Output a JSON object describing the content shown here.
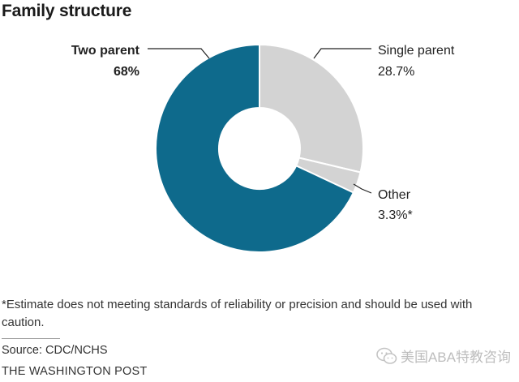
{
  "chart_data": {
    "type": "pie",
    "title": "Family structure",
    "slices": [
      {
        "label": "Single parent",
        "value": 28.7,
        "display": "28.7%",
        "color": "#d3d3d3"
      },
      {
        "label": "Other",
        "value": 3.3,
        "display": "3.3%*",
        "color": "#d3d3d3"
      },
      {
        "label": "Two parent",
        "value": 68,
        "display": "68%",
        "color": "#0e6a8c"
      }
    ],
    "separator_color": "#ffffff"
  },
  "footer": {
    "note": "*Estimate does not meeting standards of reliability or precision and should be used with caution.",
    "source": "Source: CDC/NCHS",
    "credit": "THE WASHINGTON POST"
  },
  "watermark": {
    "text": "美国ABA特教咨询",
    "icon": "wechat-icon"
  }
}
